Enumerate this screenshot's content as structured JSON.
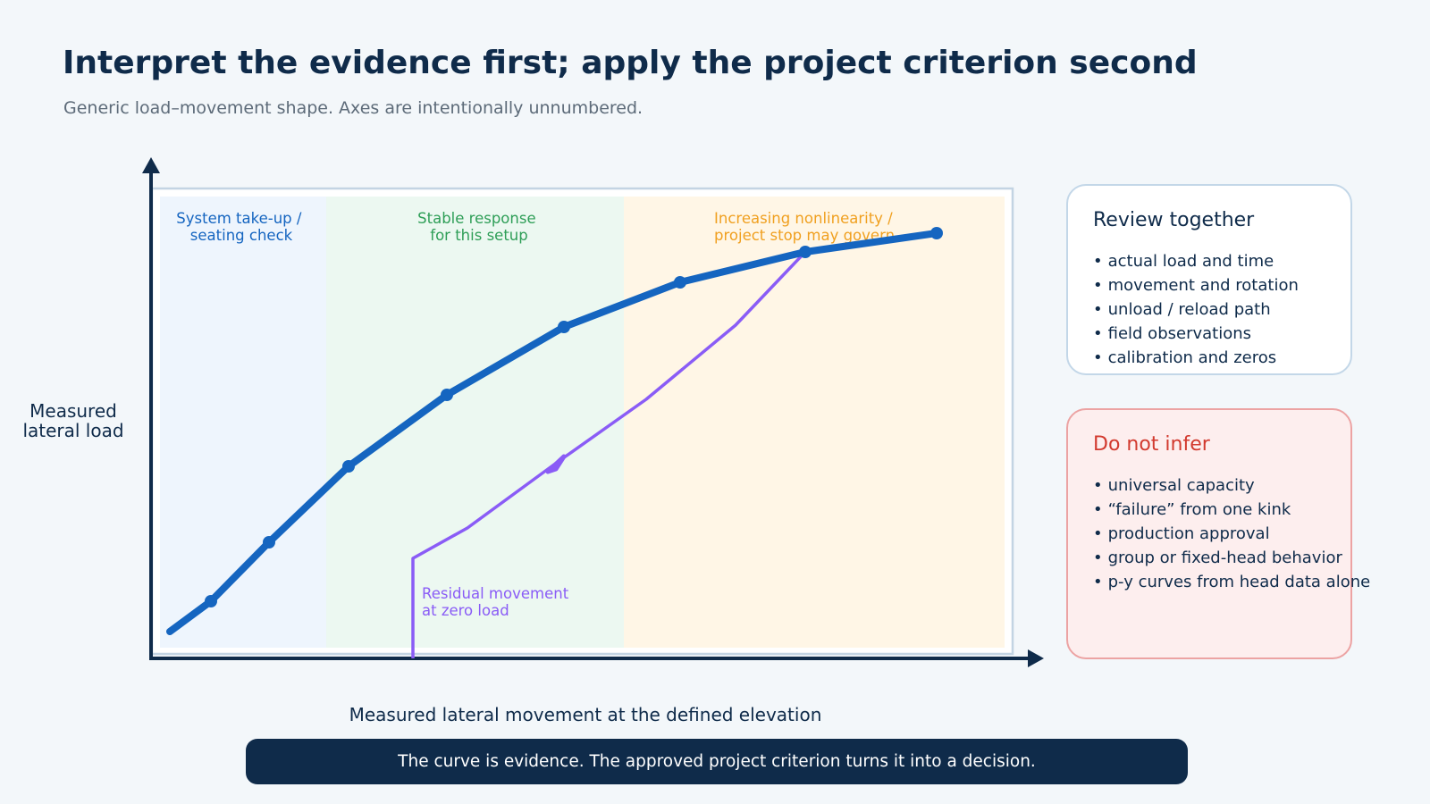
{
  "title": "Interpret the evidence first; apply the project criterion second",
  "subtitle": "Generic load–movement shape. Axes are intentionally unnumbered.",
  "axes": {
    "y_label_line1": "Measured",
    "y_label_line2": "lateral load",
    "x_label": "Measured lateral movement at the defined elevation"
  },
  "zones": [
    {
      "line1": "System take-up /",
      "line2": "seating check",
      "color": "#1565c0"
    },
    {
      "line1": "Stable response",
      "line2": "for this setup",
      "color": "#2e9e57"
    },
    {
      "line1": "Increasing nonlinearity /",
      "line2": "project stop may govern",
      "color": "#f0a020"
    }
  ],
  "annotation": {
    "line1": "Residual movement",
    "line2": "at zero load",
    "color": "#8a5cf6"
  },
  "review": {
    "title": "Review together",
    "items": [
      "actual load and time",
      "movement and rotation",
      "unload / reload path",
      "field observations",
      "calibration and zeros"
    ]
  },
  "infer": {
    "title": "Do not infer",
    "items": [
      "universal capacity",
      "“failure” from one kink",
      "production approval",
      "group or fixed-head behavior",
      "p-y curves from head data alone"
    ]
  },
  "banner": "The curve is evidence. The approved project criterion turns it into a decision.",
  "colors": {
    "loading_curve": "#1565c0",
    "unload_curve": "#8a5cf6",
    "axis": "#0f2b4a",
    "zone1_fill": "#eef5fd",
    "zone2_fill": "#ecf8f1",
    "zone3_fill": "#fff6e6"
  }
}
